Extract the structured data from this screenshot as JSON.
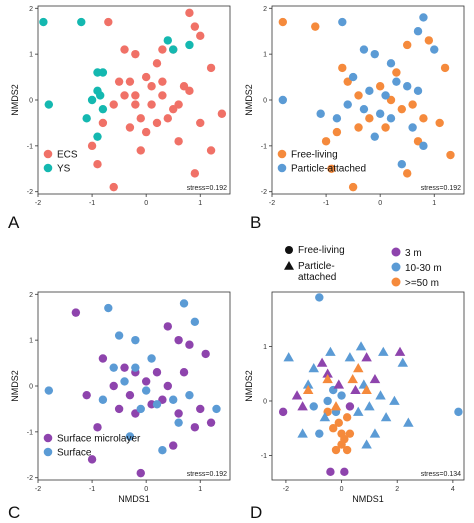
{
  "chart_data": [
    {
      "panel_label": "A",
      "type": "scatter",
      "xlabel": "",
      "ylabel": "NMDS2",
      "xlim": [
        -2,
        1.55
      ],
      "ylim": [
        -2.05,
        2.05
      ],
      "xticks": [
        "-2",
        "-1",
        "0",
        "1"
      ],
      "yticks": [
        "-2",
        "-1",
        "0",
        "1",
        "2"
      ],
      "stress": "stress=0.192",
      "legend_position": "bottom-left",
      "series": [
        {
          "name": "ECS",
          "color": "#f07167",
          "shape": "circle",
          "points": [
            [
              -0.7,
              1.7
            ],
            [
              -0.4,
              1.1
            ],
            [
              -0.2,
              1.0
            ],
            [
              0.3,
              1.1
            ],
            [
              0.5,
              1.1
            ],
            [
              0.8,
              1.9
            ],
            [
              1.0,
              1.4
            ],
            [
              0.9,
              1.6
            ],
            [
              0.2,
              0.8
            ],
            [
              0.0,
              0.5
            ],
            [
              0.1,
              0.3
            ],
            [
              -0.3,
              0.4
            ],
            [
              -0.5,
              0.4
            ],
            [
              -0.4,
              0.1
            ],
            [
              -0.6,
              -0.1
            ],
            [
              -0.2,
              0.1
            ],
            [
              0.1,
              -0.1
            ],
            [
              0.3,
              0.1
            ],
            [
              0.5,
              -0.2
            ],
            [
              0.7,
              0.3
            ],
            [
              0.8,
              0.2
            ],
            [
              -0.1,
              -0.4
            ],
            [
              0.2,
              -0.5
            ],
            [
              0.4,
              -0.4
            ],
            [
              0.0,
              -0.7
            ],
            [
              -0.3,
              -0.6
            ],
            [
              0.6,
              -0.9
            ],
            [
              1.0,
              -0.5
            ],
            [
              1.2,
              -1.1
            ],
            [
              1.4,
              -0.3
            ],
            [
              1.2,
              0.7
            ],
            [
              -0.1,
              -1.1
            ],
            [
              -1.0,
              -1.0
            ],
            [
              -0.9,
              -1.4
            ],
            [
              -0.8,
              -0.5
            ],
            [
              0.9,
              -1.6
            ],
            [
              -0.6,
              -1.9
            ],
            [
              0.6,
              -0.1
            ],
            [
              0.3,
              0.4
            ],
            [
              -0.2,
              -0.1
            ]
          ]
        },
        {
          "name": "YS",
          "color": "#14b8b0",
          "shape": "circle",
          "points": [
            [
              -1.9,
              1.7
            ],
            [
              -1.2,
              1.7
            ],
            [
              -0.9,
              0.6
            ],
            [
              -0.8,
              0.6
            ],
            [
              -0.9,
              0.2
            ],
            [
              -0.85,
              0.1
            ],
            [
              -1.0,
              0.0
            ],
            [
              -0.8,
              -0.2
            ],
            [
              -1.1,
              -0.4
            ],
            [
              -1.8,
              -0.1
            ],
            [
              -0.9,
              -0.8
            ],
            [
              0.4,
              1.3
            ],
            [
              0.8,
              1.2
            ],
            [
              0.5,
              1.1
            ]
          ]
        }
      ]
    },
    {
      "panel_label": "B",
      "type": "scatter",
      "xlabel": "",
      "ylabel": "NMDS2",
      "xlim": [
        -2,
        1.55
      ],
      "ylim": [
        -2.05,
        2.05
      ],
      "xticks": [
        "-2",
        "-1",
        "0",
        "1"
      ],
      "yticks": [
        "-2",
        "-1",
        "0",
        "1",
        "2"
      ],
      "stress": "stress=0.192",
      "legend_position": "bottom-left",
      "series": [
        {
          "name": "Free-living",
          "color": "#f58a3c",
          "shape": "circle",
          "points": [
            [
              -1.8,
              1.7
            ],
            [
              -1.2,
              1.6
            ],
            [
              0.5,
              1.2
            ],
            [
              0.9,
              1.3
            ],
            [
              1.2,
              0.7
            ],
            [
              -0.6,
              0.4
            ],
            [
              -0.4,
              0.1
            ],
            [
              0.0,
              0.3
            ],
            [
              0.2,
              0.0
            ],
            [
              0.4,
              -0.2
            ],
            [
              0.6,
              -0.1
            ],
            [
              -0.2,
              -0.4
            ],
            [
              0.1,
              -0.6
            ],
            [
              -0.4,
              -0.6
            ],
            [
              0.8,
              -0.4
            ],
            [
              1.1,
              -0.5
            ],
            [
              1.3,
              -1.2
            ],
            [
              0.7,
              -0.9
            ],
            [
              -0.8,
              -0.7
            ],
            [
              -1.0,
              -0.9
            ],
            [
              -0.9,
              -1.5
            ],
            [
              -0.5,
              -1.9
            ],
            [
              0.5,
              -1.6
            ],
            [
              -0.7,
              0.7
            ],
            [
              0.3,
              0.6
            ]
          ]
        },
        {
          "name": "Particle-attached",
          "color": "#5b9bd5",
          "shape": "circle",
          "points": [
            [
              -0.7,
              1.7
            ],
            [
              -0.3,
              1.1
            ],
            [
              -0.1,
              1.0
            ],
            [
              0.8,
              1.8
            ],
            [
              0.7,
              1.5
            ],
            [
              1.0,
              1.1
            ],
            [
              0.2,
              0.8
            ],
            [
              -0.5,
              0.5
            ],
            [
              -0.2,
              0.2
            ],
            [
              0.1,
              0.1
            ],
            [
              0.3,
              0.4
            ],
            [
              0.5,
              0.3
            ],
            [
              0.7,
              0.2
            ],
            [
              -0.6,
              -0.1
            ],
            [
              -0.3,
              -0.2
            ],
            [
              0.0,
              -0.3
            ],
            [
              0.2,
              -0.4
            ],
            [
              0.6,
              -0.6
            ],
            [
              0.8,
              -1.0
            ],
            [
              -0.8,
              -0.4
            ],
            [
              -1.1,
              -0.3
            ],
            [
              -1.8,
              0.0
            ],
            [
              -0.1,
              -0.8
            ],
            [
              0.4,
              -1.4
            ]
          ]
        }
      ]
    },
    {
      "panel_label": "C",
      "type": "scatter",
      "xlabel": "NMDS1",
      "ylabel": "NMDS2",
      "xlim": [
        -2,
        1.55
      ],
      "ylim": [
        -2.05,
        2.05
      ],
      "xticks": [
        "-2",
        "-1",
        "0",
        "1"
      ],
      "yticks": [
        "-2",
        "-1",
        "0",
        "1",
        "2"
      ],
      "stress": "stress=0.192",
      "legend_position": "bottom-left",
      "series": [
        {
          "name": "Surface microlayer",
          "color": "#8e44ad",
          "shape": "circle",
          "points": [
            [
              -1.3,
              1.6
            ],
            [
              0.4,
              1.3
            ],
            [
              0.6,
              1.0
            ],
            [
              0.8,
              0.9
            ],
            [
              1.1,
              0.7
            ],
            [
              -0.8,
              0.6
            ],
            [
              -0.4,
              0.4
            ],
            [
              -0.2,
              0.3
            ],
            [
              0.0,
              0.1
            ],
            [
              0.2,
              0.3
            ],
            [
              0.4,
              0.0
            ],
            [
              -0.6,
              0.0
            ],
            [
              -0.3,
              -0.2
            ],
            [
              0.1,
              -0.4
            ],
            [
              0.3,
              -0.3
            ],
            [
              0.6,
              -0.6
            ],
            [
              0.9,
              -0.9
            ],
            [
              1.2,
              -0.8
            ],
            [
              -1.1,
              -0.2
            ],
            [
              -0.9,
              -0.9
            ],
            [
              -1.0,
              -1.6
            ],
            [
              -0.1,
              -1.9
            ],
            [
              0.5,
              -1.3
            ],
            [
              1.0,
              -0.5
            ],
            [
              -0.5,
              -0.5
            ],
            [
              0.7,
              0.3
            ],
            [
              -0.2,
              -0.6
            ]
          ]
        },
        {
          "name": "Surface",
          "color": "#5b9bd5",
          "shape": "circle",
          "points": [
            [
              -0.7,
              1.7
            ],
            [
              0.7,
              1.8
            ],
            [
              0.9,
              1.4
            ],
            [
              -0.5,
              1.1
            ],
            [
              -0.2,
              1.0
            ],
            [
              0.1,
              0.6
            ],
            [
              -0.6,
              0.4
            ],
            [
              -0.4,
              0.1
            ],
            [
              0.0,
              -0.1
            ],
            [
              0.2,
              -0.4
            ],
            [
              0.5,
              -0.3
            ],
            [
              -0.1,
              -0.5
            ],
            [
              0.8,
              -0.2
            ],
            [
              1.3,
              -0.5
            ],
            [
              -0.8,
              -0.3
            ],
            [
              -1.8,
              -0.1
            ],
            [
              0.6,
              -0.8
            ],
            [
              -0.3,
              -1.1
            ],
            [
              0.3,
              -1.4
            ],
            [
              -0.2,
              0.4
            ]
          ]
        }
      ]
    },
    {
      "panel_label": "D",
      "type": "scatter",
      "xlabel": "NMDS1",
      "ylabel": "NMDS2",
      "xlim": [
        -2.5,
        4.4
      ],
      "ylim": [
        -1.45,
        2.0
      ],
      "xticks": [
        "-2",
        "0",
        "2",
        "4"
      ],
      "yticks": [
        "-1",
        "0",
        "1"
      ],
      "stress": "stress=0.134",
      "legend_position": "top",
      "shape_legend": [
        {
          "label": "Free-living",
          "shape": "circle"
        },
        {
          "label": "Particle-\nattached",
          "shape": "triangle"
        }
      ],
      "color_legend": [
        {
          "label": "3 m",
          "color": "#8e44ad"
        },
        {
          "label": "10-30 m",
          "color": "#5b9bd5"
        },
        {
          "label": ">=50 m",
          "color": "#f58a3c"
        }
      ],
      "series": [
        {
          "name": "Free-living 3 m",
          "color": "#8e44ad",
          "shape": "circle",
          "points": [
            [
              -2.1,
              -0.2
            ],
            [
              -0.4,
              -1.3
            ],
            [
              0.1,
              -1.3
            ],
            [
              0.3,
              -0.1
            ]
          ]
        },
        {
          "name": "Free-living 10-30 m",
          "color": "#5b9bd5",
          "shape": "circle",
          "points": [
            [
              -0.8,
              1.9
            ],
            [
              -0.8,
              -0.6
            ],
            [
              -1.0,
              -0.1
            ],
            [
              -0.5,
              0.0
            ],
            [
              -0.2,
              -0.2
            ],
            [
              0.0,
              0.1
            ],
            [
              4.2,
              -0.2
            ],
            [
              -0.3,
              0.2
            ]
          ]
        },
        {
          "name": "Free-living >=50 m",
          "color": "#f58a3c",
          "shape": "circle",
          "points": [
            [
              -0.5,
              -0.2
            ],
            [
              -0.1,
              -0.4
            ],
            [
              0.0,
              -0.6
            ],
            [
              0.1,
              -0.7
            ],
            [
              -0.3,
              -0.5
            ],
            [
              0.2,
              -0.3
            ],
            [
              0.3,
              -0.6
            ],
            [
              0.0,
              -0.8
            ],
            [
              -0.2,
              -0.9
            ],
            [
              0.2,
              -0.9
            ]
          ]
        },
        {
          "name": "Particle-attached 3 m",
          "color": "#8e44ad",
          "shape": "triangle",
          "points": [
            [
              -1.6,
              0.1
            ],
            [
              -1.4,
              -0.1
            ],
            [
              -0.7,
              0.7
            ],
            [
              -0.5,
              0.5
            ],
            [
              0.9,
              0.8
            ],
            [
              1.2,
              0.4
            ],
            [
              2.1,
              0.9
            ],
            [
              0.5,
              0.2
            ],
            [
              -0.1,
              0.3
            ]
          ]
        },
        {
          "name": "Particle-attached 10-30 m",
          "color": "#5b9bd5",
          "shape": "triangle",
          "points": [
            [
              -1.9,
              0.8
            ],
            [
              -1.0,
              0.6
            ],
            [
              -0.4,
              0.9
            ],
            [
              0.3,
              0.8
            ],
            [
              0.7,
              1.0
            ],
            [
              1.5,
              0.9
            ],
            [
              2.2,
              0.7
            ],
            [
              -1.2,
              0.3
            ],
            [
              0.8,
              0.3
            ],
            [
              1.4,
              0.1
            ],
            [
              2.4,
              -0.4
            ],
            [
              1.0,
              -0.1
            ],
            [
              1.6,
              -0.3
            ],
            [
              -1.4,
              -0.6
            ],
            [
              0.9,
              -0.8
            ],
            [
              -0.6,
              -0.3
            ],
            [
              1.9,
              0.0
            ],
            [
              0.6,
              -0.2
            ],
            [
              1.2,
              -0.6
            ]
          ]
        },
        {
          "name": "Particle-attached >=50 m",
          "color": "#f58a3c",
          "shape": "triangle",
          "points": [
            [
              -1.2,
              0.2
            ],
            [
              -0.5,
              0.4
            ],
            [
              0.4,
              0.4
            ],
            [
              0.9,
              0.2
            ],
            [
              -0.2,
              -0.1
            ],
            [
              0.6,
              0.6
            ]
          ]
        }
      ]
    }
  ]
}
